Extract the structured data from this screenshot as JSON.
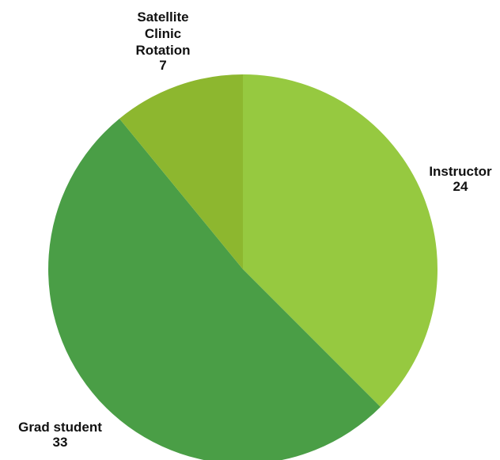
{
  "chart_data": {
    "type": "pie",
    "slices": [
      {
        "label": "Instructor",
        "value": 24,
        "color": "#96c940"
      },
      {
        "label": "Grad student",
        "value": 33,
        "color": "#4a9e46"
      },
      {
        "label": "Satellite Clinic Rotation",
        "value": 7,
        "color": "#8db72f"
      }
    ],
    "start": "top, clockwise",
    "legend": "none, labels outside slices"
  }
}
